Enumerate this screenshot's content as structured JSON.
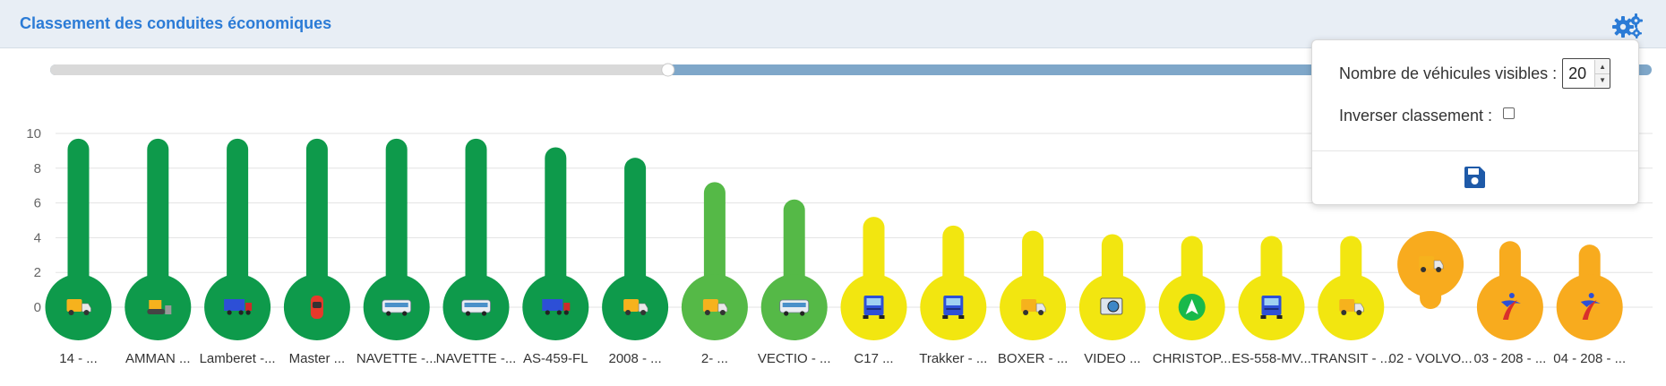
{
  "header": {
    "title": "Classement des conduites économiques"
  },
  "icons": {
    "settings": "gears-icon",
    "save": "floppy-disk-icon"
  },
  "colors": {
    "accent": "#2b7bd6",
    "dark_green": "#0e9a4b",
    "light_green": "#55b947",
    "yellow": "#f2e610",
    "orange": "#f8ab1e",
    "scroll_track": "#d9d9d9",
    "scroll_thumb": "#7fa7c9"
  },
  "popup": {
    "visible_label": "Nombre de véhicules visibles :",
    "visible_count": "20",
    "reverse_label": "Inverser classement :",
    "reverse_checked": false
  },
  "scrollbar": {
    "position_fraction": 0.5
  },
  "chart_data": {
    "type": "bar",
    "title": "",
    "xlabel": "",
    "ylabel": "",
    "ylim": [
      0,
      10
    ],
    "yticks": [
      0,
      2,
      4,
      6,
      8,
      10
    ],
    "grid": true,
    "categories": [
      "14 - ...",
      "AMMAN ...",
      "Lamberet -...",
      "Master ...",
      "NAVETTE -...",
      "NAVETTE -...",
      "AS-459-FL",
      "2008 - ...",
      "2- ...",
      "VECTIO - ...",
      "C17 ...",
      "Trakker - ...",
      "BOXER - ...",
      "VIDEO ...",
      "CHRISTOP...",
      "ES-558-MV...",
      "TRANSIT - ...",
      "02 - VOLVO...",
      "03 - 208 - ...",
      "04 - 208 - ..."
    ],
    "values": [
      9.7,
      9.7,
      9.7,
      9.7,
      9.7,
      9.7,
      9.2,
      8.6,
      7.2,
      6.2,
      5.2,
      4.7,
      4.4,
      4.2,
      4.1,
      4.1,
      4.1,
      0.1,
      3.8,
      3.6
    ],
    "colors": [
      "#0e9a4b",
      "#0e9a4b",
      "#0e9a4b",
      "#0e9a4b",
      "#0e9a4b",
      "#0e9a4b",
      "#0e9a4b",
      "#0e9a4b",
      "#55b947",
      "#55b947",
      "#f2e610",
      "#f2e610",
      "#f2e610",
      "#f2e610",
      "#f2e610",
      "#f2e610",
      "#f2e610",
      "#f8ab1e",
      "#f8ab1e",
      "#f8ab1e"
    ],
    "marker_icons": [
      "van-icon",
      "bulldozer-icon",
      "truck-trailer-icon",
      "car-top-icon",
      "bus-icon",
      "bus-icon",
      "truck-trailer-icon",
      "van-icon",
      "van-icon",
      "bus-icon",
      "truck-front-icon",
      "truck-front-icon",
      "van-icon",
      "camera-icon",
      "navigation-arrow-icon",
      "truck-front-icon",
      "van-icon",
      "van-icon",
      "logo-icon",
      "logo-icon"
    ]
  }
}
